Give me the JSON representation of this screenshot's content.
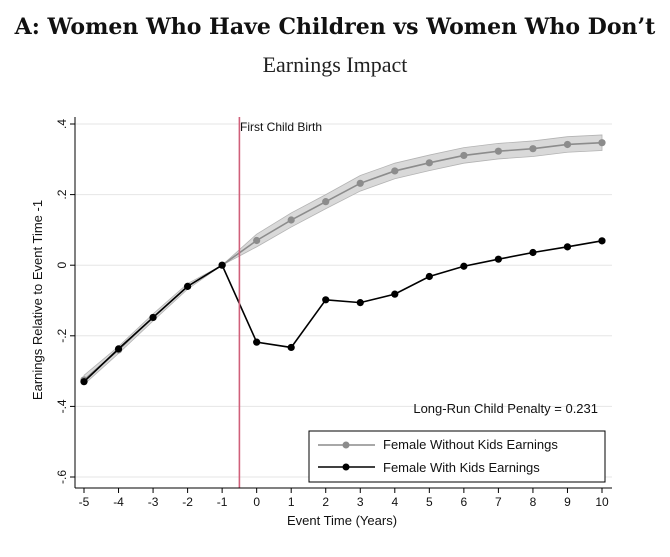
{
  "chart_data": {
    "type": "line",
    "title": "A: Women Who Have Children vs Women Who Don’t",
    "subtitle": "Earnings Impact",
    "xlabel": "Event Time (Years)",
    "ylabel": "Earnings Relative to Event Time -1",
    "xlim": [
      -5,
      10
    ],
    "ylim": [
      -0.6,
      0.4
    ],
    "xticks": [
      -5,
      -4,
      -3,
      -2,
      -1,
      0,
      1,
      2,
      3,
      4,
      5,
      6,
      7,
      8,
      9,
      10
    ],
    "yticks": [
      -0.6,
      -0.4,
      -0.2,
      0,
      0.2,
      0.4
    ],
    "ytick_labels": [
      "-.6",
      "-.4",
      "-.2",
      "0",
      ".2",
      ".4"
    ],
    "grid": true,
    "event_line": {
      "x": -0.5,
      "label": "First Child Birth",
      "color": "#d0607a"
    },
    "annotation": "Long-Run Child Penalty = 0.231",
    "legend_position": "bottom-right",
    "series": [
      {
        "name": "Female Without Kids Earnings",
        "color": "#8c8c8c",
        "band_color": "#d9d9d9",
        "x": [
          -5,
          -4,
          -3,
          -2,
          -1,
          0,
          1,
          2,
          3,
          4,
          5,
          6,
          7,
          8,
          9,
          10
        ],
        "y": [
          -0.325,
          -0.24,
          -0.148,
          -0.06,
          0.0,
          0.07,
          0.128,
          0.18,
          0.232,
          0.267,
          0.29,
          0.311,
          0.323,
          0.33,
          0.342,
          0.347
        ],
        "ci_lower": [
          -0.338,
          -0.25,
          -0.158,
          -0.068,
          0.0,
          0.052,
          0.108,
          0.16,
          0.21,
          0.245,
          0.268,
          0.289,
          0.301,
          0.308,
          0.32,
          0.325
        ],
        "ci_upper": [
          -0.312,
          -0.23,
          -0.138,
          -0.052,
          0.0,
          0.088,
          0.148,
          0.2,
          0.254,
          0.289,
          0.312,
          0.333,
          0.345,
          0.352,
          0.364,
          0.369
        ]
      },
      {
        "name": "Female With Kids Earnings",
        "color": "#000000",
        "x": [
          -5,
          -4,
          -3,
          -2,
          -1,
          0,
          1,
          2,
          3,
          4,
          5,
          6,
          7,
          8,
          9,
          10
        ],
        "y": [
          -0.33,
          -0.237,
          -0.148,
          -0.06,
          0.0,
          -0.218,
          -0.233,
          -0.098,
          -0.106,
          -0.082,
          -0.032,
          -0.003,
          0.017,
          0.036,
          0.052,
          0.069
        ]
      }
    ]
  }
}
